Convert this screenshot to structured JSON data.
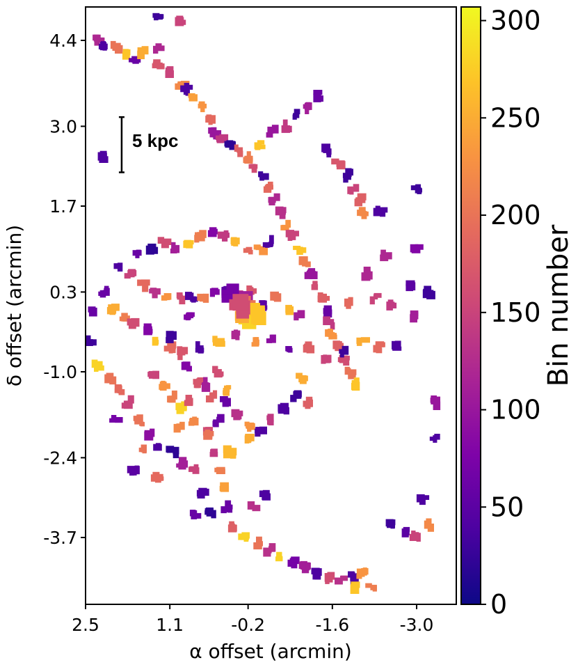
{
  "chart_data": {
    "type": "scatter",
    "title": "",
    "xlabel": "α offset (arcmin)",
    "ylabel": "δ offset (arcmin)",
    "xlim": [
      2.5,
      -3.5
    ],
    "ylim": [
      -5.0,
      5.0
    ],
    "x_ticks": [
      {
        "value": 2.5,
        "label": "2.5"
      },
      {
        "value": 1.1,
        "label": "1.1"
      },
      {
        "value": -0.2,
        "label": "-0.2"
      },
      {
        "value": -1.6,
        "label": "-1.6"
      },
      {
        "value": -3.0,
        "label": "-3.0"
      }
    ],
    "y_ticks": [
      {
        "value": 4.4,
        "label": "4.4"
      },
      {
        "value": 3.0,
        "label": "3.0"
      },
      {
        "value": 1.7,
        "label": "1.7"
      },
      {
        "value": 0.3,
        "label": "0.3"
      },
      {
        "value": -1.0,
        "label": "-1.0"
      },
      {
        "value": -2.4,
        "label": "-2.4"
      },
      {
        "value": -3.7,
        "label": "-3.7"
      }
    ],
    "colorbar": {
      "label": "Bin number",
      "colormap": "plasma",
      "range": [
        0,
        307
      ],
      "ticks": [
        {
          "value": 0,
          "label": "0"
        },
        {
          "value": 50,
          "label": "50"
        },
        {
          "value": 100,
          "label": "100"
        },
        {
          "value": 150,
          "label": "150"
        },
        {
          "value": 200,
          "label": "200"
        },
        {
          "value": 250,
          "label": "250"
        },
        {
          "value": 300,
          "label": "300"
        }
      ]
    },
    "scale_bar": {
      "label": "5 kpc",
      "x": 1.9,
      "y_from": 2.25,
      "y_to": 3.15
    },
    "points": [
      [
        1.3,
        4.8,
        30
      ],
      [
        0.9,
        4.7,
        150
      ],
      [
        2.5,
        4.5,
        220
      ],
      [
        2.3,
        4.4,
        120
      ],
      [
        2.2,
        4.3,
        40
      ],
      [
        2.0,
        4.3,
        200
      ],
      [
        1.8,
        4.2,
        270
      ],
      [
        1.7,
        4.1,
        60
      ],
      [
        1.55,
        4.2,
        250
      ],
      [
        1.3,
        4.0,
        170
      ],
      [
        1.1,
        3.9,
        150
      ],
      [
        0.9,
        3.7,
        220
      ],
      [
        0.8,
        3.6,
        40
      ],
      [
        0.7,
        3.5,
        240
      ],
      [
        0.55,
        3.3,
        230
      ],
      [
        0.45,
        3.1,
        190
      ],
      [
        0.35,
        2.9,
        100
      ],
      [
        0.25,
        2.8,
        140
      ],
      [
        0.1,
        2.7,
        20
      ],
      [
        -0.05,
        2.6,
        180
      ],
      [
        -0.2,
        2.5,
        210
      ],
      [
        -0.3,
        2.3,
        160
      ],
      [
        -0.45,
        2.2,
        30
      ],
      [
        -0.55,
        2.0,
        190
      ],
      [
        -0.65,
        1.8,
        120
      ],
      [
        -0.75,
        1.6,
        130
      ],
      [
        -0.85,
        1.4,
        230
      ],
      [
        -0.95,
        1.2,
        150
      ],
      [
        -1.05,
        1.0,
        270
      ],
      [
        -1.15,
        0.8,
        210
      ],
      [
        -1.25,
        0.6,
        100
      ],
      [
        -1.35,
        0.4,
        160
      ],
      [
        -1.45,
        0.2,
        180
      ],
      [
        -1.5,
        0.0,
        60
      ],
      [
        -1.55,
        -0.2,
        140
      ],
      [
        -1.6,
        -0.4,
        230
      ],
      [
        -1.7,
        -0.6,
        180
      ],
      [
        -1.8,
        -0.8,
        160
      ],
      [
        -1.9,
        -1.0,
        200
      ],
      [
        -2.0,
        -1.2,
        270
      ],
      [
        -1.4,
        3.5,
        60
      ],
      [
        -1.2,
        3.3,
        110
      ],
      [
        -1.0,
        3.2,
        30
      ],
      [
        -0.8,
        3.0,
        140
      ],
      [
        -0.6,
        2.9,
        100
      ],
      [
        -0.4,
        2.7,
        270
      ],
      [
        -1.5,
        2.6,
        40
      ],
      [
        -1.7,
        2.4,
        170
      ],
      [
        -1.85,
        2.2,
        30
      ],
      [
        -1.95,
        2.0,
        150
      ],
      [
        -2.05,
        1.8,
        180
      ],
      [
        -2.1,
        1.6,
        220
      ],
      [
        -2.4,
        1.6,
        40
      ],
      [
        -3.0,
        2.0,
        30
      ],
      [
        -3.0,
        1.0,
        80
      ],
      [
        -2.5,
        0.9,
        120
      ],
      [
        1.6,
        0.9,
        60
      ],
      [
        1.4,
        1.0,
        20
      ],
      [
        1.2,
        1.1,
        160
      ],
      [
        1.0,
        1.0,
        110
      ],
      [
        0.8,
        1.1,
        270
      ],
      [
        0.6,
        1.2,
        210
      ],
      [
        0.4,
        1.3,
        80
      ],
      [
        0.2,
        1.2,
        140
      ],
      [
        0.0,
        1.1,
        260
      ],
      [
        -0.2,
        1.0,
        190
      ],
      [
        -0.4,
        1.0,
        230
      ],
      [
        -0.55,
        1.1,
        40
      ],
      [
        1.95,
        0.7,
        40
      ],
      [
        1.75,
        0.6,
        150
      ],
      [
        1.55,
        0.4,
        190
      ],
      [
        1.35,
        0.3,
        130
      ],
      [
        1.15,
        0.2,
        230
      ],
      [
        0.95,
        0.2,
        160
      ],
      [
        0.75,
        0.2,
        40
      ],
      [
        0.55,
        0.2,
        210
      ],
      [
        0.35,
        0.3,
        80
      ],
      [
        0.15,
        0.3,
        50
      ],
      [
        -0.05,
        0.2,
        140
      ],
      [
        -0.15,
        0.0,
        280
      ],
      [
        -0.25,
        0.3,
        170
      ],
      [
        -0.45,
        0.1,
        50
      ],
      [
        -0.65,
        0.2,
        200
      ],
      [
        -0.85,
        0.0,
        260
      ],
      [
        -1.05,
        -0.1,
        110
      ],
      [
        2.2,
        0.3,
        60
      ],
      [
        2.05,
        0.0,
        250
      ],
      [
        1.85,
        -0.1,
        210
      ],
      [
        1.7,
        -0.2,
        160
      ],
      [
        1.5,
        -0.3,
        80
      ],
      [
        1.3,
        -0.5,
        270
      ],
      [
        1.1,
        -0.6,
        190
      ],
      [
        0.9,
        -0.7,
        170
      ],
      [
        0.6,
        -0.6,
        40
      ],
      [
        0.3,
        -0.5,
        260
      ],
      [
        0.0,
        -0.4,
        120
      ],
      [
        -0.3,
        -0.5,
        230
      ],
      [
        -0.6,
        -0.5,
        90
      ],
      [
        -0.9,
        -0.6,
        60
      ],
      [
        -1.2,
        -0.6,
        180
      ],
      [
        -1.5,
        -0.8,
        150
      ],
      [
        -1.8,
        -0.7,
        30
      ],
      [
        -2.1,
        -0.5,
        250
      ],
      [
        -2.4,
        -0.6,
        190
      ],
      [
        -2.7,
        -0.6,
        40
      ],
      [
        -3.0,
        -0.1,
        110
      ],
      [
        2.4,
        0.0,
        60
      ],
      [
        2.4,
        -0.5,
        30
      ],
      [
        2.3,
        -0.9,
        280
      ],
      [
        2.1,
        -1.1,
        200
      ],
      [
        1.95,
        -1.3,
        190
      ],
      [
        1.8,
        -1.5,
        150
      ],
      [
        1.6,
        -1.8,
        200
      ],
      [
        1.4,
        -2.0,
        90
      ],
      [
        1.25,
        -2.2,
        40
      ],
      [
        1.05,
        -2.3,
        20
      ],
      [
        0.9,
        -2.5,
        110
      ],
      [
        0.7,
        -2.6,
        150
      ],
      [
        1.35,
        -1.0,
        150
      ],
      [
        1.2,
        -1.2,
        230
      ],
      [
        1.05,
        -1.4,
        210
      ],
      [
        0.9,
        -1.6,
        280
      ],
      [
        0.7,
        -1.8,
        220
      ],
      [
        0.5,
        -2.0,
        160
      ],
      [
        0.35,
        -2.3,
        140
      ],
      [
        0.25,
        -2.6,
        210
      ],
      [
        0.2,
        -2.9,
        240
      ],
      [
        0.15,
        -3.2,
        60
      ],
      [
        0.05,
        -3.5,
        180
      ],
      [
        -0.15,
        -3.7,
        280
      ],
      [
        -0.35,
        -3.8,
        200
      ],
      [
        -0.55,
        -3.9,
        130
      ],
      [
        -0.75,
        -4.0,
        280
      ],
      [
        -0.95,
        -4.1,
        70
      ],
      [
        -1.15,
        -4.2,
        110
      ],
      [
        -1.35,
        -4.3,
        40
      ],
      [
        -1.55,
        -4.35,
        160
      ],
      [
        -1.75,
        -4.4,
        130
      ],
      [
        -1.95,
        -4.35,
        40
      ],
      [
        -2.1,
        -4.3,
        230
      ],
      [
        -2.25,
        -4.5,
        210
      ],
      [
        -2.0,
        -4.5,
        270
      ],
      [
        0.8,
        -0.9,
        80
      ],
      [
        0.6,
        -1.2,
        170
      ],
      [
        0.4,
        -1.4,
        180
      ],
      [
        0.2,
        -1.5,
        60
      ],
      [
        0.0,
        -1.7,
        130
      ],
      [
        -0.2,
        -1.9,
        230
      ],
      [
        -0.4,
        -2.0,
        40
      ],
      [
        -0.6,
        -1.8,
        140
      ],
      [
        -0.8,
        -1.6,
        40
      ],
      [
        -1.0,
        -1.4,
        30
      ],
      [
        -1.2,
        -1.5,
        180
      ],
      [
        0.45,
        -2.0,
        200
      ],
      [
        0.3,
        -1.8,
        60
      ],
      [
        0.1,
        -2.3,
        260
      ],
      [
        -0.5,
        -3.0,
        40
      ],
      [
        -0.3,
        -3.2,
        130
      ],
      [
        -0.2,
        -2.1,
        250
      ],
      [
        0.55,
        -3.0,
        40
      ],
      [
        0.4,
        -3.3,
        20
      ],
      [
        0.7,
        -3.3,
        60
      ],
      [
        -2.6,
        -3.5,
        30
      ],
      [
        -2.8,
        -3.6,
        50
      ],
      [
        -3.0,
        -3.7,
        150
      ],
      [
        -3.2,
        -3.5,
        220
      ],
      [
        -3.1,
        -3.1,
        40
      ],
      [
        -3.3,
        -1.5,
        100
      ],
      [
        -3.3,
        -2.1,
        40
      ],
      [
        -3.2,
        0.3,
        30
      ],
      [
        -2.9,
        0.4,
        50
      ],
      [
        0.8,
        -0.1,
        80
      ],
      [
        1.05,
        -0.45,
        30
      ],
      [
        0.3,
        -1.0,
        160
      ],
      [
        -1.1,
        -1.1,
        250
      ],
      [
        -2.2,
        0.6,
        120
      ],
      [
        -2.3,
        0.2,
        150
      ],
      [
        -1.85,
        0.1,
        190
      ],
      [
        -2.6,
        0.1,
        140
      ],
      [
        2.0,
        -1.8,
        70
      ],
      [
        1.7,
        -2.6,
        50
      ],
      [
        1.55,
        -2.3,
        200
      ],
      [
        1.3,
        -2.7,
        190
      ],
      [
        0.95,
        -1.9,
        220
      ],
      [
        0.75,
        -1.5,
        170
      ],
      [
        0.55,
        -1.2,
        110
      ],
      [
        0.15,
        -1.3,
        250
      ],
      [
        2.25,
        2.5,
        40
      ],
      [
        1.3,
        4.3,
        120
      ]
    ],
    "dense_clusters": [
      [
        -0.1,
        0.2,
        110
      ],
      [
        -0.2,
        0.1,
        200
      ],
      [
        -0.25,
        -0.1,
        280
      ],
      [
        -0.35,
        -0.05,
        270
      ],
      [
        -0.15,
        -0.05,
        250
      ],
      [
        0.05,
        0.25,
        70
      ],
      [
        -0.05,
        0.05,
        160
      ]
    ]
  }
}
